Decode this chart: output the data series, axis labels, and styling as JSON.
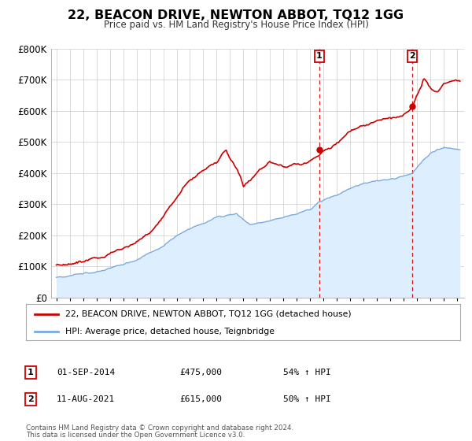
{
  "title": "22, BEACON DRIVE, NEWTON ABBOT, TQ12 1GG",
  "subtitle": "Price paid vs. HM Land Registry's House Price Index (HPI)",
  "legend_line1": "22, BEACON DRIVE, NEWTON ABBOT, TQ12 1GG (detached house)",
  "legend_line2": "HPI: Average price, detached house, Teignbridge",
  "annotation1_label": "1",
  "annotation1_date": "01-SEP-2014",
  "annotation1_price": "£475,000",
  "annotation1_hpi": "54% ↑ HPI",
  "annotation1_year": 2014.67,
  "annotation1_value": 475000,
  "annotation2_label": "2",
  "annotation2_date": "11-AUG-2021",
  "annotation2_price": "£615,000",
  "annotation2_hpi": "50% ↑ HPI",
  "annotation2_year": 2021.61,
  "annotation2_value": 615000,
  "red_line_color": "#cc0000",
  "blue_line_color": "#7aaadd",
  "blue_fill_color": "#ddeeff",
  "grid_color": "#cccccc",
  "background_color": "#ffffff",
  "ylim": [
    0,
    800000
  ],
  "xlim_start": 1994.6,
  "xlim_end": 2025.5,
  "footnote1": "Contains HM Land Registry data © Crown copyright and database right 2024.",
  "footnote2": "This data is licensed under the Open Government Licence v3.0."
}
